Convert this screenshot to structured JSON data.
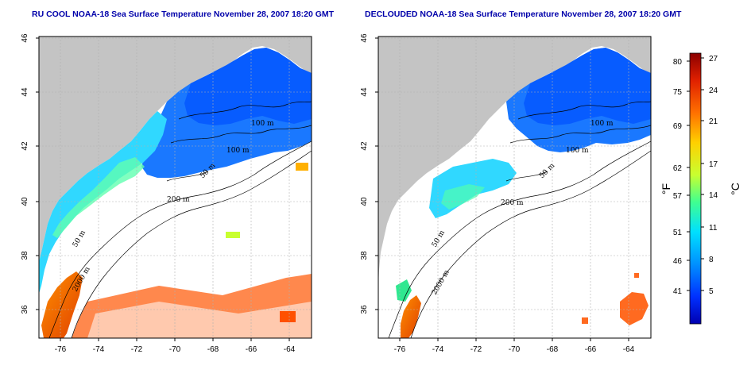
{
  "left_map": {
    "title": "RU COOL NOAA-18 Sea Surface Temperature November 28, 2007 18:20 GMT"
  },
  "right_map": {
    "title": "DECLOUDED NOAA-18 Sea Surface Temperature November 28, 2007 18:20 GMT"
  },
  "axes": {
    "lon_ticks": [
      "-76",
      "-74",
      "-72",
      "-70",
      "-68",
      "-66",
      "-64"
    ],
    "lat_ticks": [
      "36",
      "38",
      "40",
      "42",
      "44",
      "46"
    ]
  },
  "contour_labels": {
    "left": [
      "100 m",
      "100 m",
      "50 m",
      "200 m",
      "50 m",
      "2000 m"
    ],
    "right": [
      "100 m",
      "100 m",
      "50 m",
      "200 m",
      "50 m",
      "2000 m"
    ]
  },
  "colorbar": {
    "fahrenheit_ticks": [
      "80",
      "75",
      "69",
      "62",
      "57",
      "51",
      "46",
      "41"
    ],
    "celsius_ticks": [
      "27",
      "24",
      "21",
      "17",
      "14",
      "11",
      "8",
      "5"
    ],
    "fahrenheit_label": "°F",
    "celsius_label": "°C",
    "colors": [
      "#8b0000",
      "#e02000",
      "#ff8000",
      "#ffd000",
      "#c8ff30",
      "#40ff90",
      "#00e0ff",
      "#0090ff",
      "#0030ff",
      "#0000b0"
    ]
  },
  "colors": {
    "land": "#c4c4c4",
    "ocean": "#ffffff",
    "title": "#0000aa"
  }
}
